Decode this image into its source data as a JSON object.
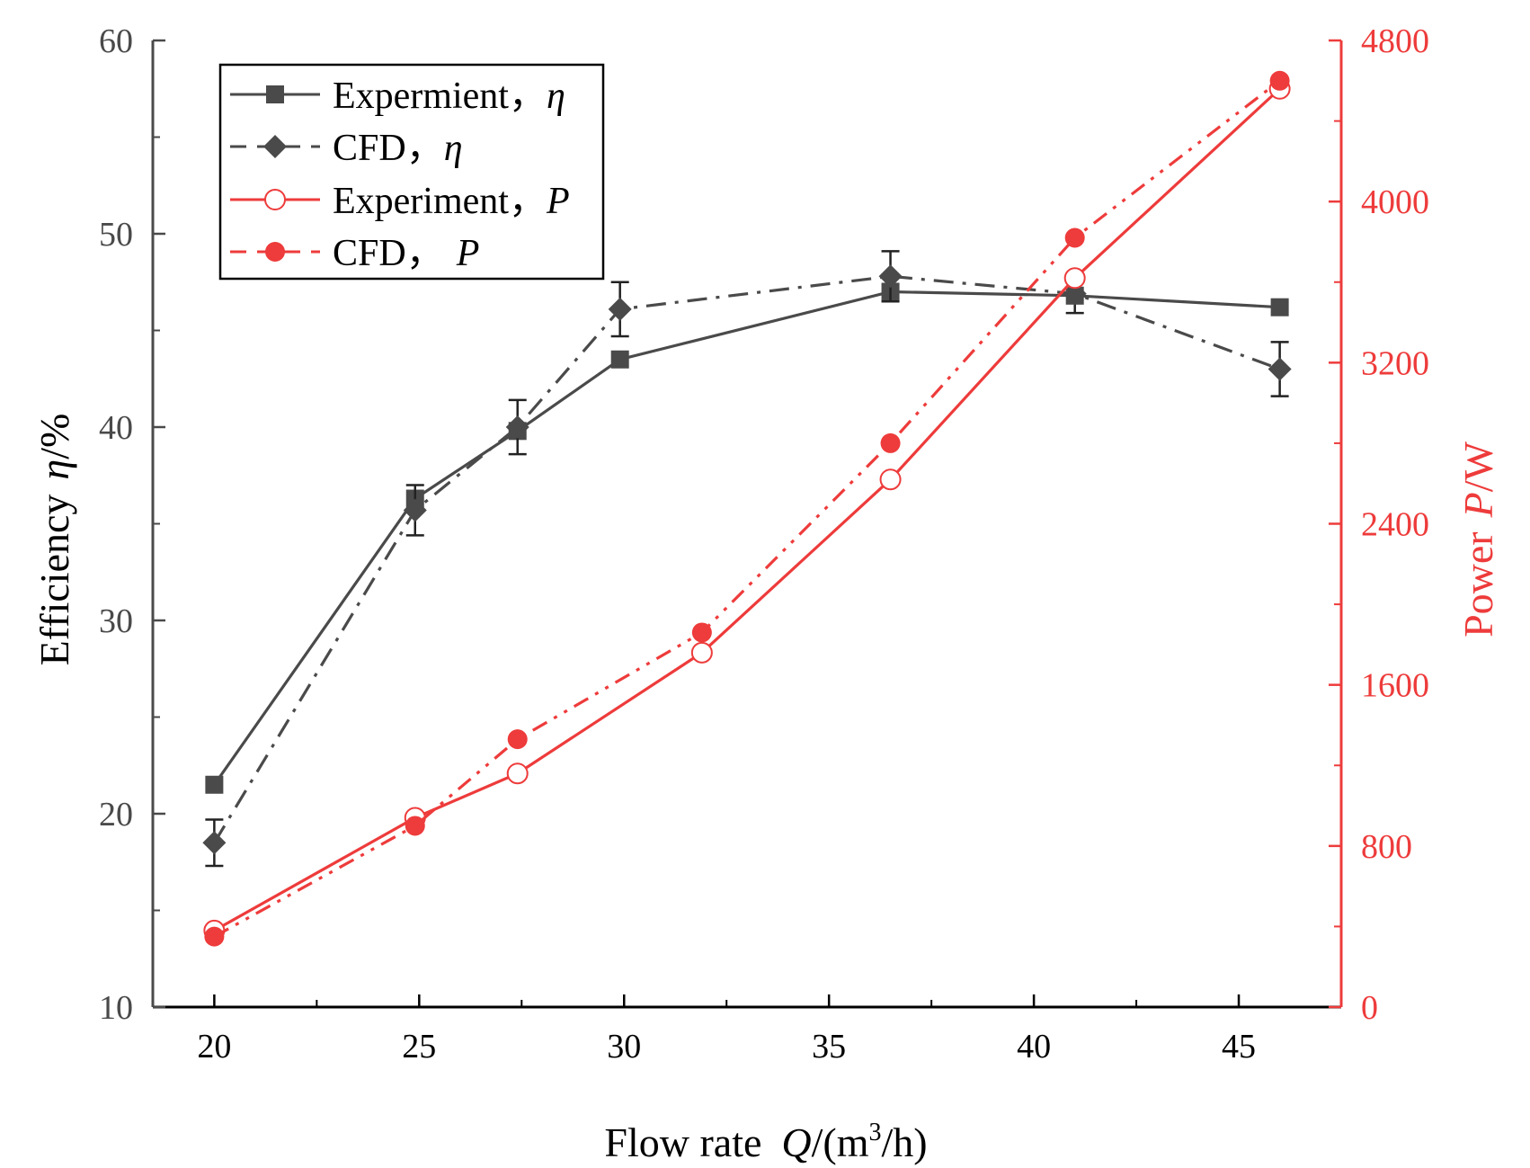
{
  "chart_data": {
    "type": "line",
    "xlabel": "Flow rate",
    "xlabel_symbol": "Q",
    "xlabel_unit": "/(m",
    "xlabel_sup": "3",
    "xlabel_unit_end": "/h)",
    "ylabel_left": "Efficiency",
    "ylabel_left_symbol": "η",
    "ylabel_left_unit": "/%",
    "ylabel_right": "Power",
    "ylabel_right_symbol": "P",
    "ylabel_right_unit": "/W",
    "xlim": [
      18.5,
      47.5
    ],
    "ylim_left": [
      10,
      60
    ],
    "ylim_right": [
      0,
      4800
    ],
    "xticks": [
      20,
      25,
      30,
      35,
      40,
      45
    ],
    "xtick_labels": [
      "20",
      "25",
      "30",
      "35",
      "40",
      "45"
    ],
    "yticks_left": [
      10,
      20,
      30,
      40,
      50,
      60
    ],
    "ytick_labels_left": [
      "10",
      "20",
      "30",
      "40",
      "50",
      "60"
    ],
    "yticks_right": [
      0,
      800,
      1600,
      2400,
      3200,
      4000,
      4800
    ],
    "ytick_labels_right": [
      "0",
      "800",
      "1600",
      "2400",
      "3200",
      "4000",
      "4800"
    ],
    "legend_position": "top-left",
    "colors": {
      "efficiency": "#4a4a4a",
      "power": "#ee3b3b"
    },
    "series": [
      {
        "name": "Expermient，",
        "symbol": "η",
        "axis": "left",
        "marker": "square",
        "line": "solid",
        "x": [
          20,
          24.9,
          27.4,
          29.9,
          36.5,
          41.0,
          46.0
        ],
        "values": [
          21.5,
          36.3,
          39.8,
          43.5,
          47.0,
          46.8,
          46.2
        ]
      },
      {
        "name": "CFD，",
        "symbol": "η",
        "axis": "left",
        "marker": "diamond",
        "line": "dashdot",
        "x": [
          20,
          24.9,
          27.4,
          29.9,
          36.5,
          41.0,
          46.0
        ],
        "values": [
          18.5,
          35.7,
          40.0,
          46.1,
          47.8,
          46.9,
          43.0
        ],
        "error": [
          1.2,
          1.3,
          1.4,
          1.4,
          1.3,
          1.0,
          1.4
        ]
      },
      {
        "name": "Experiment，",
        "symbol": "P",
        "axis": "right",
        "marker": "circle-open",
        "line": "solid",
        "x": [
          20,
          24.9,
          27.4,
          31.9,
          36.5,
          41.0,
          46.0
        ],
        "values": [
          380,
          940,
          1160,
          1760,
          2620,
          3620,
          4560
        ]
      },
      {
        "name": "CFD，",
        "symbol": "P",
        "axis": "right",
        "marker": "circle-filled",
        "line": "dashdotdot",
        "x": [
          20,
          24.9,
          27.4,
          31.9,
          36.5,
          41.0,
          46.0
        ],
        "values": [
          350,
          900,
          1330,
          1860,
          2800,
          3820,
          4600
        ]
      }
    ]
  }
}
